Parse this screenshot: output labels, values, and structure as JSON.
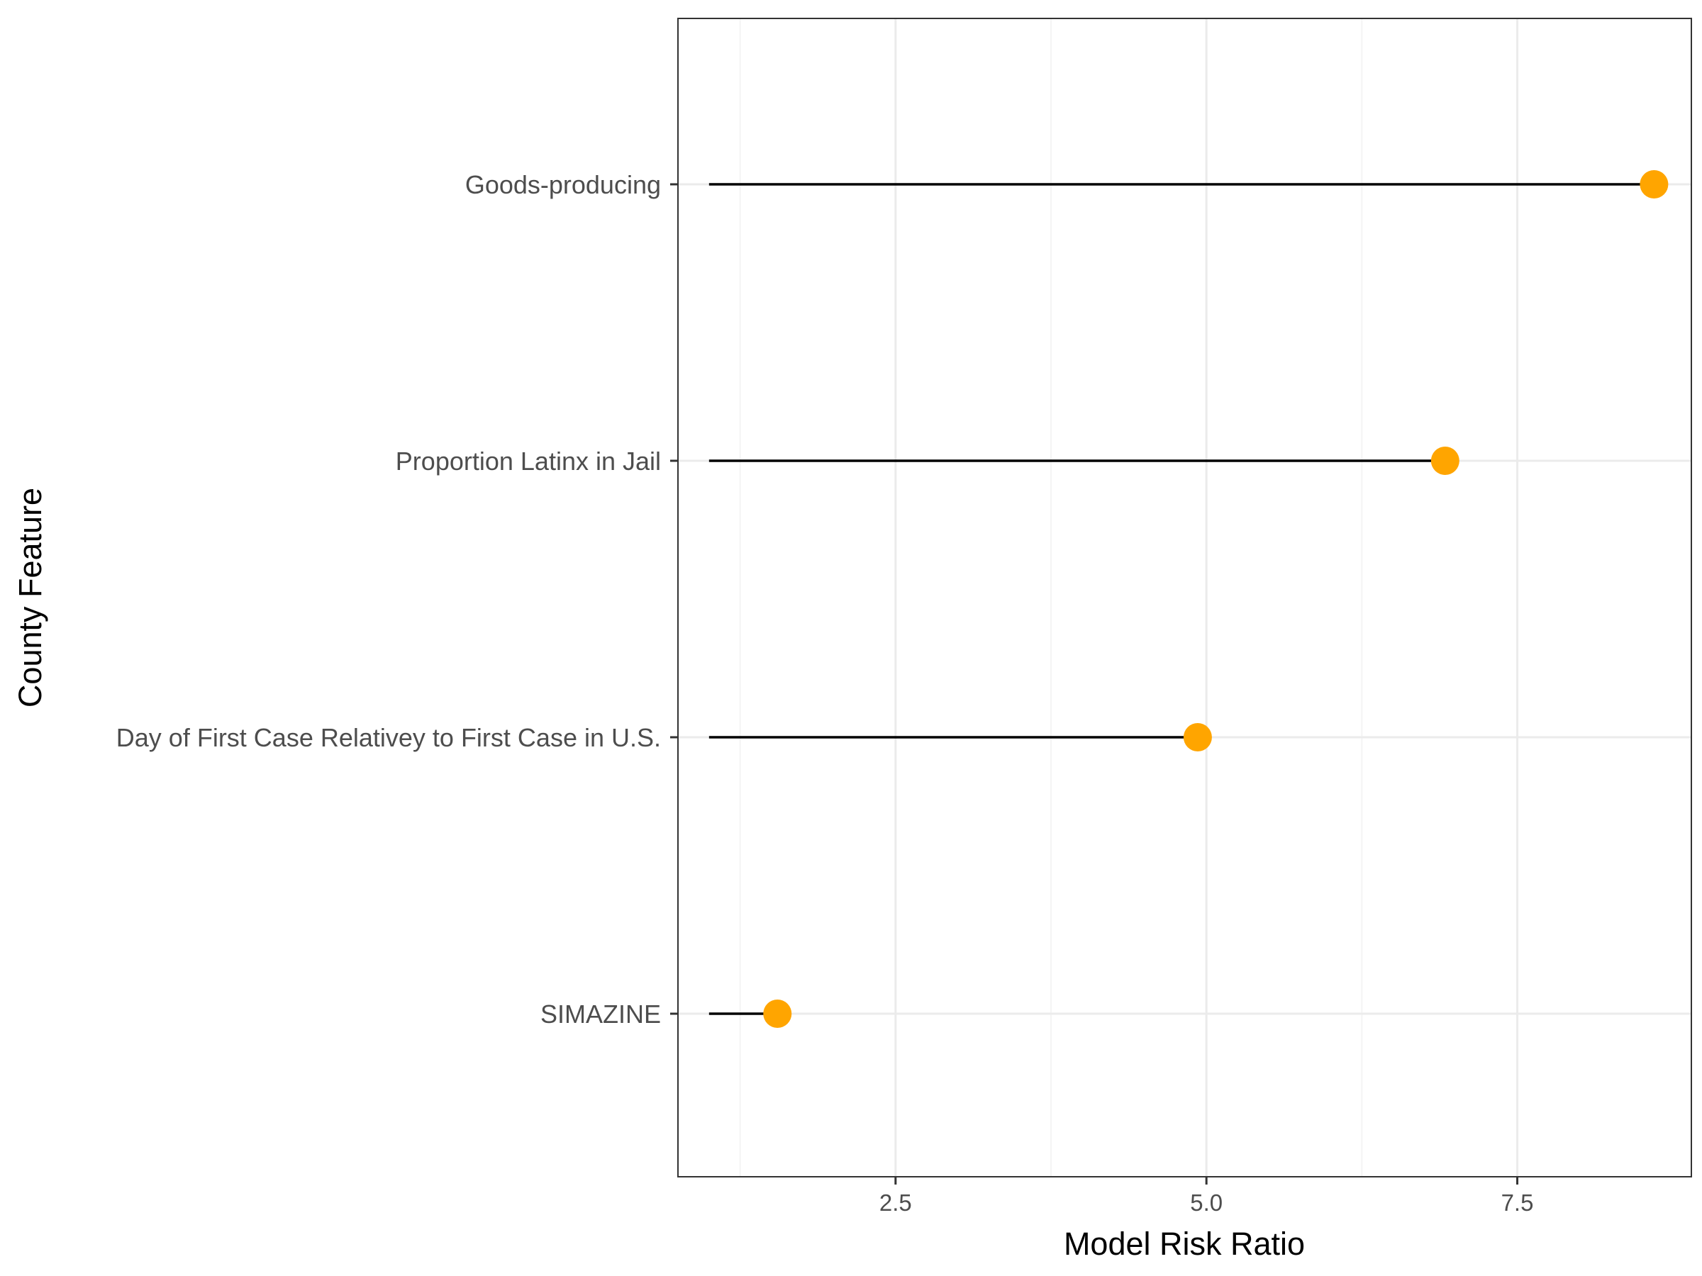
{
  "chart_data": {
    "type": "lollipop",
    "title": "",
    "xlabel": "Model Risk Ratio",
    "ylabel": "County Feature",
    "xlim": [
      0.75,
      8.9
    ],
    "baseline": 1.0,
    "x_ticks": [
      2.5,
      5.0,
      7.5
    ],
    "x_tick_labels": [
      "2.5",
      "5.0",
      "7.5"
    ],
    "x_minor_gridlines": [
      1.25,
      3.75,
      6.25
    ],
    "grid": true,
    "legend": "none",
    "categories": [
      "Goods-producing",
      "Proportion Latinx in Jail",
      "Day of First Case Relativey to First Case in U.S.",
      "SIMAZINE"
    ],
    "values": [
      8.6,
      6.92,
      4.93,
      1.55
    ],
    "colors": {
      "point": "#FFA500",
      "stem": "#000000",
      "grid_major": "#ebebeb",
      "grid_minor": "#f4f4f4",
      "panel_border": "#333333"
    }
  }
}
